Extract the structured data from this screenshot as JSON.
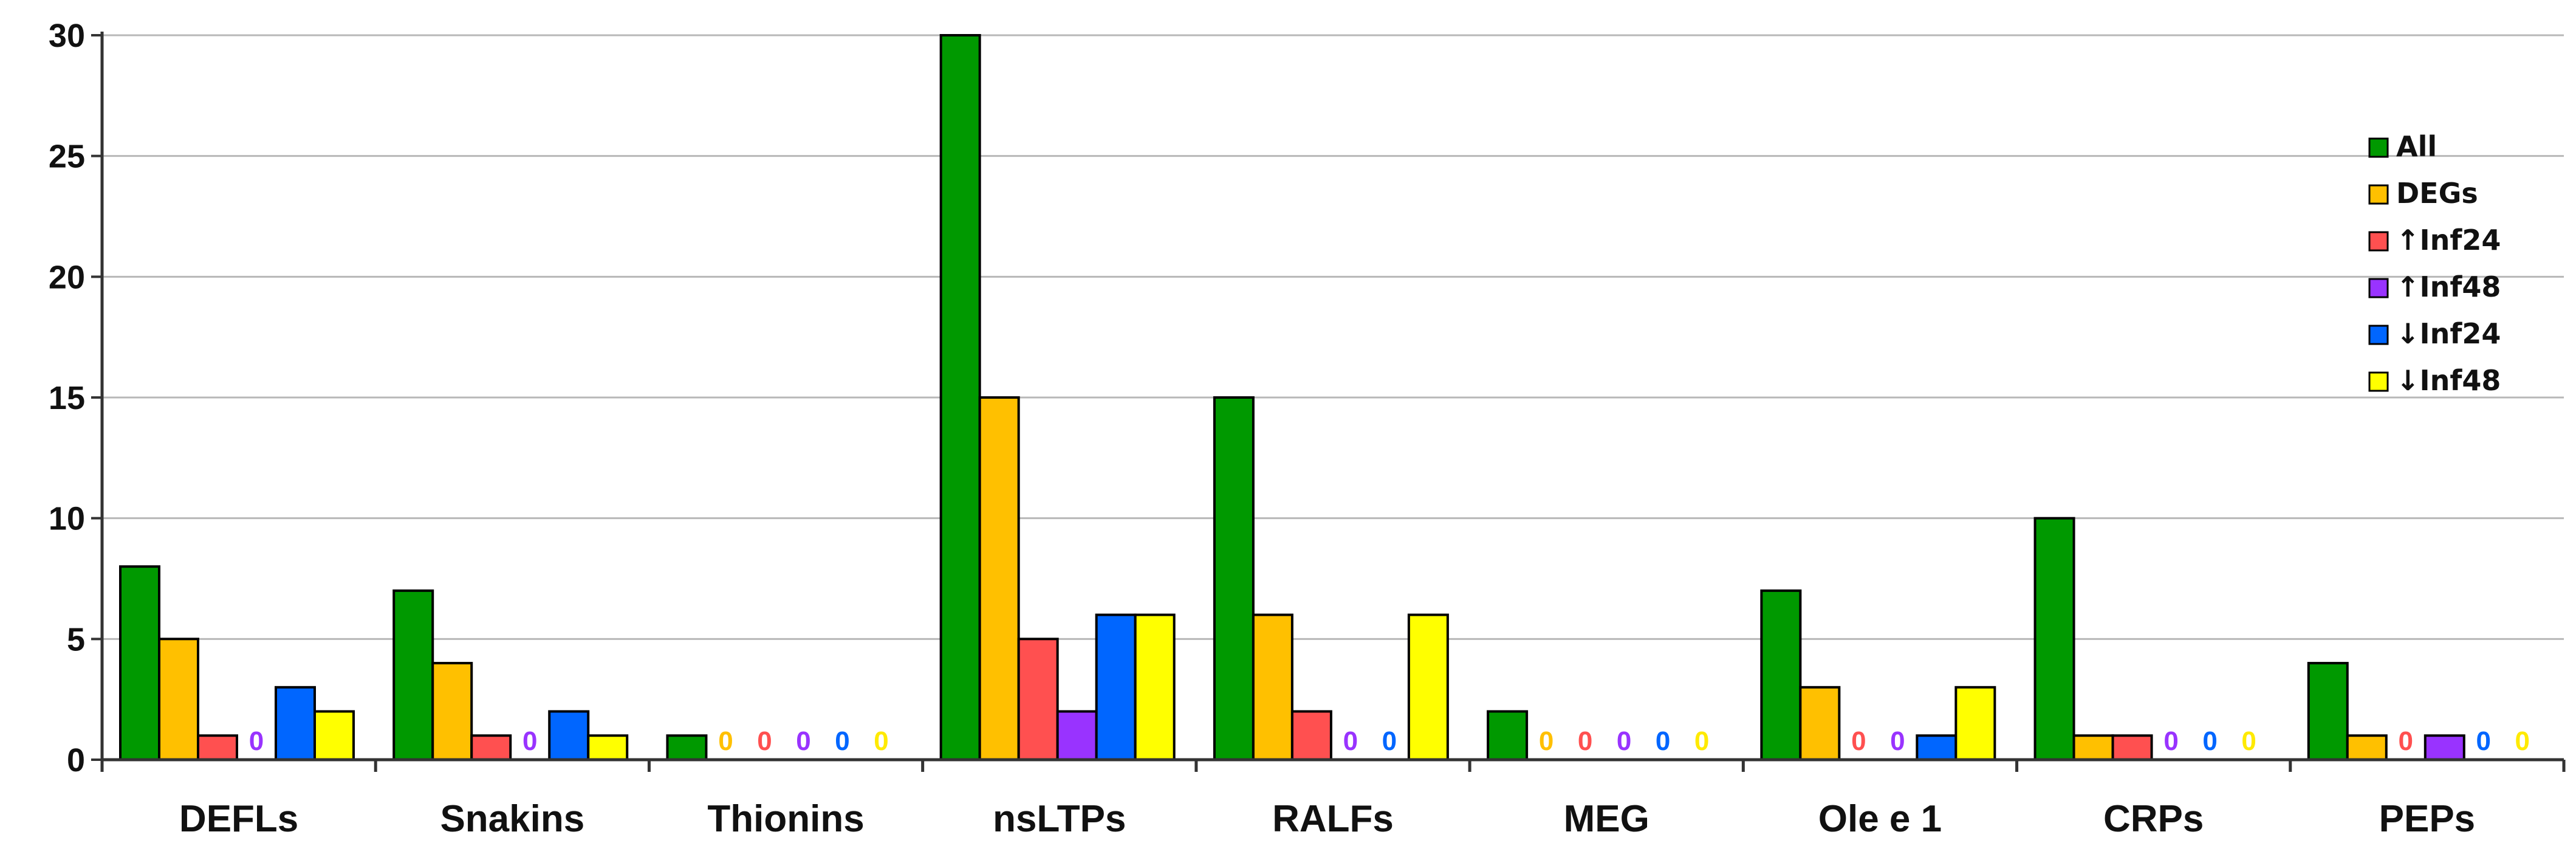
{
  "chart_data": {
    "type": "bar",
    "title": "",
    "xlabel": "",
    "ylabel": "",
    "ylim": [
      0,
      30
    ],
    "yticks": [
      0,
      5,
      10,
      15,
      20,
      25,
      30
    ],
    "grid": true,
    "legend_position": "right",
    "categories": [
      "DEFLs",
      "Snakins",
      "Thionins",
      "nsLTPs",
      "RALFs",
      "MEG",
      "Ole e 1",
      "CRPs",
      "PEPs"
    ],
    "series": [
      {
        "name": "All",
        "color": "#009900",
        "values": [
          8,
          7,
          1,
          30,
          15,
          2,
          7,
          10,
          4
        ]
      },
      {
        "name": "DEGs",
        "color": "#FFC000",
        "values": [
          5,
          4,
          0,
          15,
          6,
          0,
          3,
          1,
          1
        ]
      },
      {
        "name": "↑Inf24",
        "color": "#FF5050",
        "values": [
          1,
          1,
          0,
          5,
          2,
          0,
          0,
          1,
          0
        ]
      },
      {
        "name": "↑Inf48",
        "color": "#9933FF",
        "values": [
          0,
          0,
          0,
          2,
          0,
          0,
          0,
          0,
          1
        ]
      },
      {
        "name": "↓Inf24",
        "color": "#0066FF",
        "values": [
          3,
          2,
          0,
          6,
          0,
          0,
          1,
          0,
          0
        ]
      },
      {
        "name": "↓Inf48",
        "color": "#FFFF00",
        "values": [
          2,
          1,
          0,
          6,
          6,
          0,
          3,
          0,
          0
        ]
      }
    ],
    "zero_labels": [
      {
        "category": "DEFLs",
        "series": "↑Inf48",
        "text": "0"
      },
      {
        "category": "Snakins",
        "series": "↑Inf48",
        "text": "0"
      },
      {
        "category": "Thionins",
        "series": "DEGs",
        "text": "0"
      },
      {
        "category": "Thionins",
        "series": "↑Inf24",
        "text": "0"
      },
      {
        "category": "Thionins",
        "series": "↑Inf48",
        "text": "0"
      },
      {
        "category": "Thionins",
        "series": "↓Inf24",
        "text": "0"
      },
      {
        "category": "Thionins",
        "series": "↓Inf48",
        "text": "0"
      },
      {
        "category": "RALFs",
        "series": "↑Inf48",
        "text": "0"
      },
      {
        "category": "RALFs",
        "series": "↓Inf24",
        "text": "0"
      },
      {
        "category": "MEG",
        "series": "DEGs",
        "text": "0"
      },
      {
        "category": "MEG",
        "series": "↑Inf24",
        "text": "0"
      },
      {
        "category": "MEG",
        "series": "↑Inf48",
        "text": "0"
      },
      {
        "category": "MEG",
        "series": "↓Inf24",
        "text": "0"
      },
      {
        "category": "MEG",
        "series": "↓Inf48",
        "text": "0"
      },
      {
        "category": "Ole e 1",
        "series": "↑Inf24",
        "text": "0"
      },
      {
        "category": "Ole e 1",
        "series": "↑Inf48",
        "text": "0"
      },
      {
        "category": "CRPs",
        "series": "↑Inf48",
        "text": "0"
      },
      {
        "category": "CRPs",
        "series": "↓Inf24",
        "text": "0"
      },
      {
        "category": "CRPs",
        "series": "↓Inf48",
        "text": "0"
      },
      {
        "category": "PEPs",
        "series": "↑Inf24",
        "text": "0"
      },
      {
        "category": "PEPs",
        "series": "↓Inf24",
        "text": "0"
      },
      {
        "category": "PEPs",
        "series": "↓Inf48",
        "text": "0"
      }
    ],
    "zero_label_colors": {
      "DEGs": "#FFC000",
      "↑Inf24": "#FF5050",
      "↑Inf48": "#9933FF",
      "↓Inf24": "#0066FF",
      "↓Inf48": "#FFEA00"
    }
  }
}
